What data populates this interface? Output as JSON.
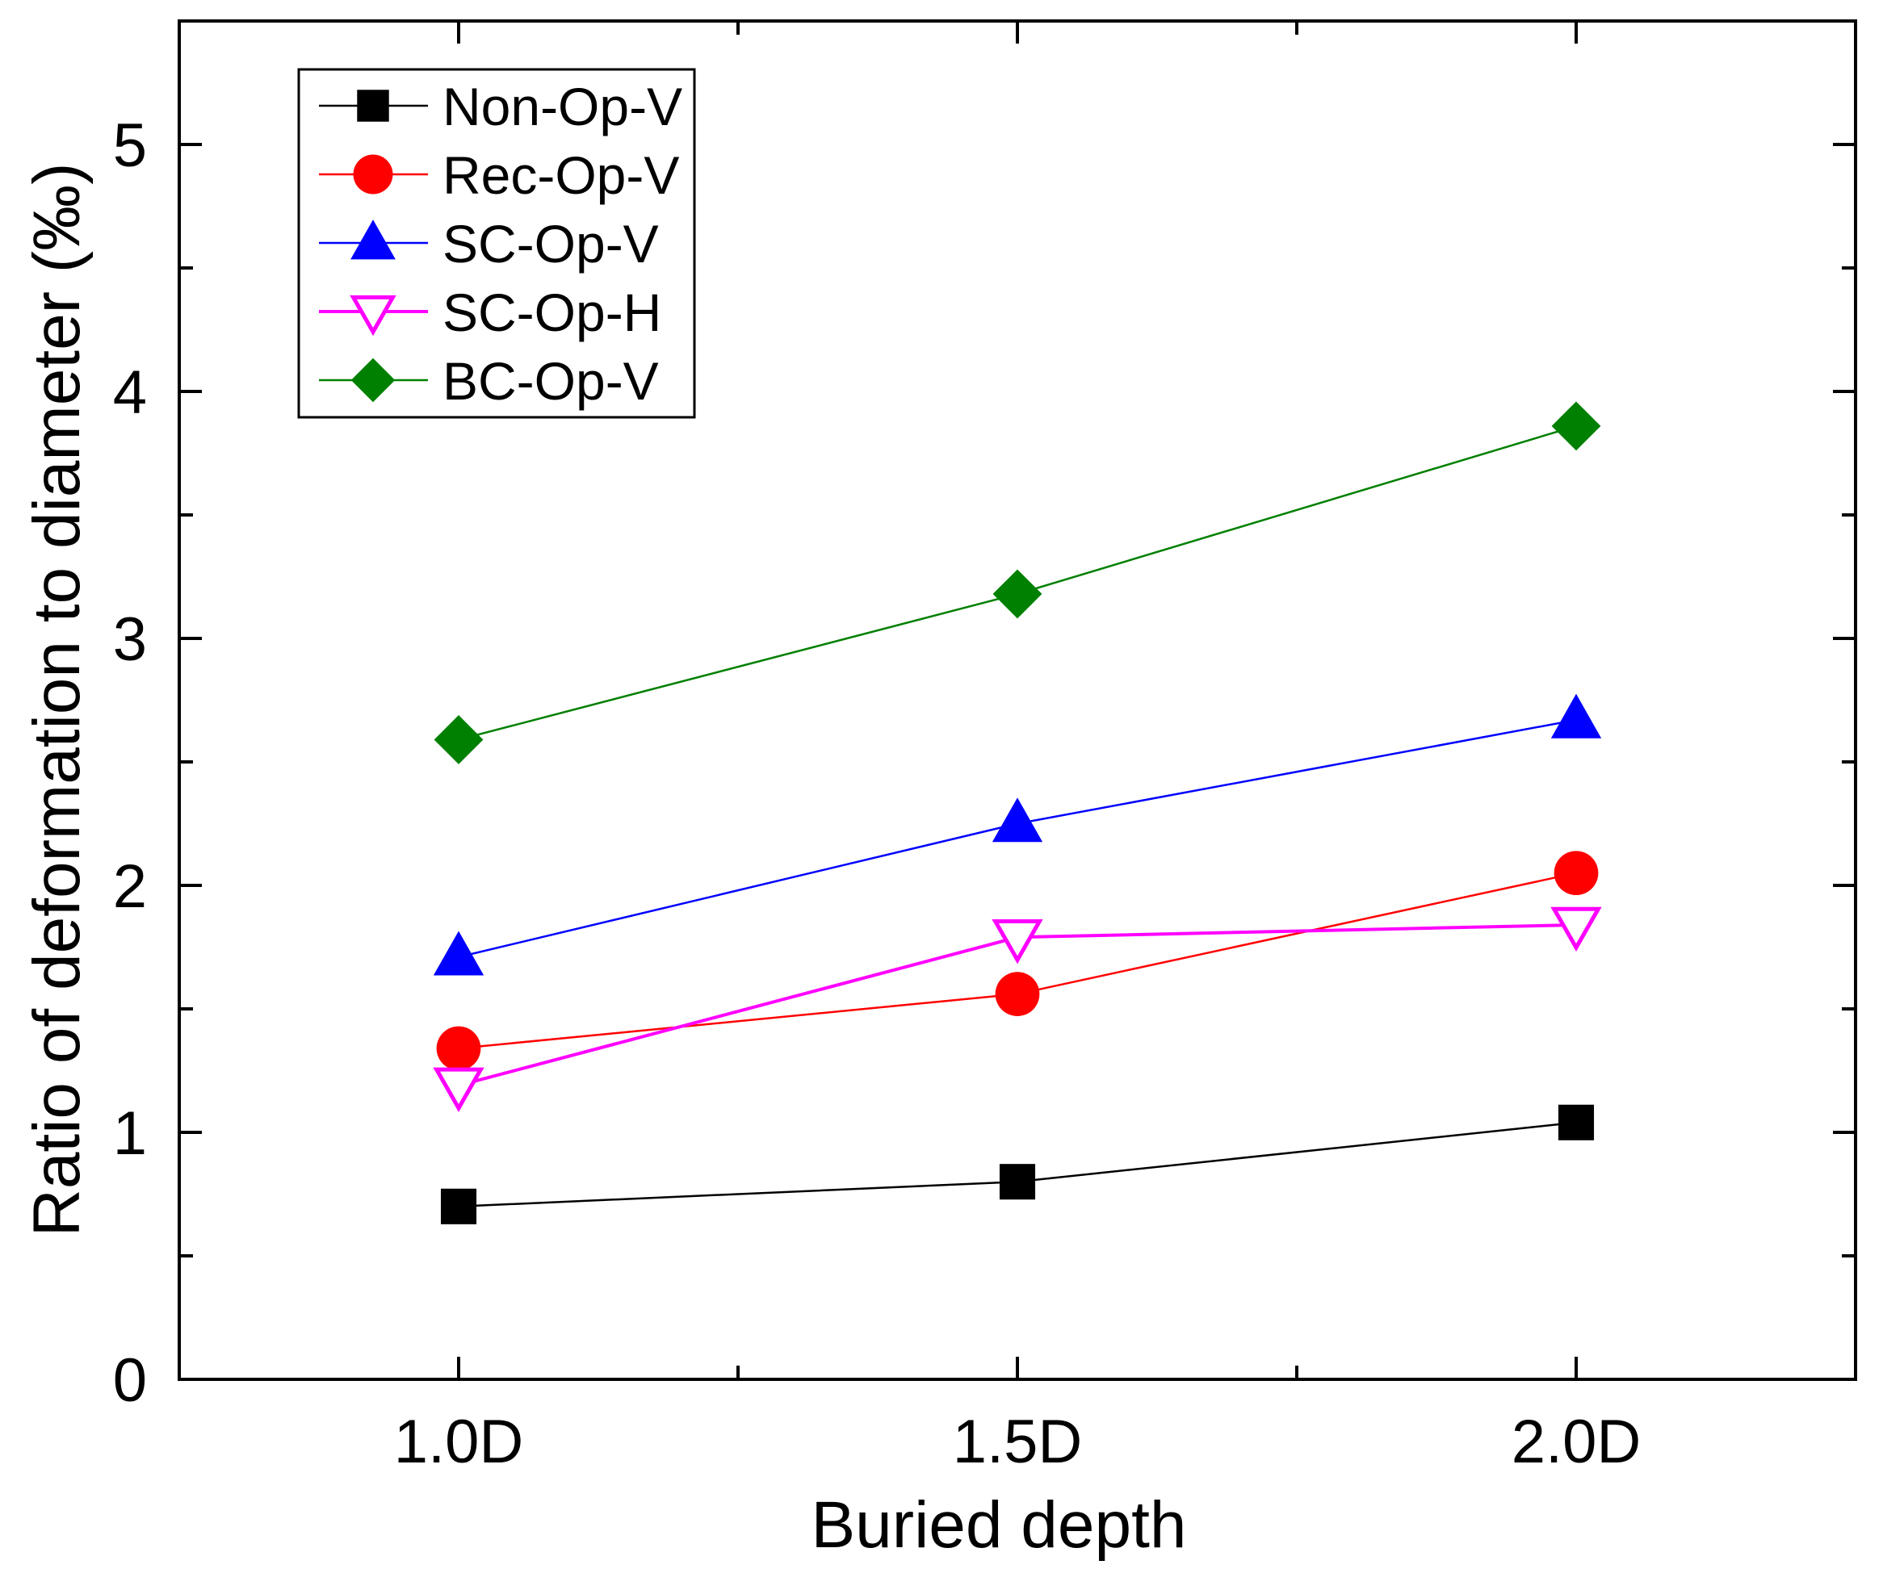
{
  "chart_data": {
    "type": "line",
    "title": "",
    "xlabel": "Buried depth",
    "ylabel": "Ratio of deformation to diameter (‰)",
    "categories": [
      "1.0D",
      "1.5D",
      "2.0D"
    ],
    "x": [
      1.0,
      1.5,
      2.0
    ],
    "xlim": [
      0.75,
      2.25
    ],
    "ylim": [
      0,
      5.5
    ],
    "yticks": [
      "0",
      "1",
      "2",
      "3",
      "4",
      "5"
    ],
    "legend_position": "top-left",
    "grid": false,
    "series": [
      {
        "name": "Non-Op-V",
        "color": "#000000",
        "marker": "square-filled",
        "values": [
          0.7,
          0.8,
          1.04
        ]
      },
      {
        "name": "Rec-Op-V",
        "color": "#ff0000",
        "marker": "circle-filled",
        "values": [
          1.34,
          1.56,
          2.05
        ]
      },
      {
        "name": "SC-Op-V",
        "color": "#0000ff",
        "marker": "triangle-up-filled",
        "values": [
          1.71,
          2.25,
          2.67
        ]
      },
      {
        "name": "SC-Op-H",
        "color": "#ff00ff",
        "marker": "triangle-down-open",
        "values": [
          1.19,
          1.79,
          1.84
        ]
      },
      {
        "name": "BC-Op-V",
        "color": "#008000",
        "marker": "diamond-filled",
        "values": [
          2.59,
          3.18,
          3.86
        ]
      }
    ]
  }
}
